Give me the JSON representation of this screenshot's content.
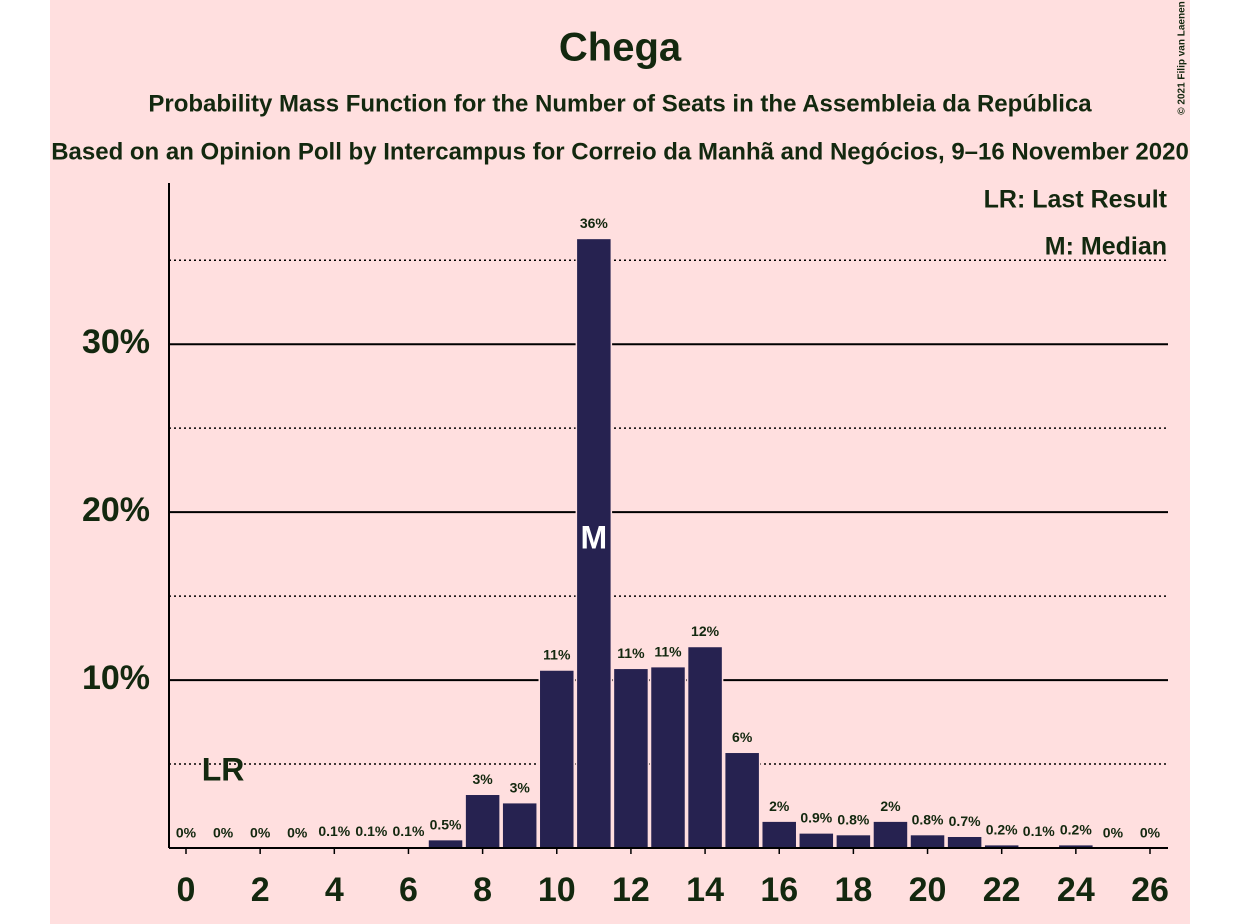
{
  "chart_data": {
    "type": "bar",
    "title": "Chega",
    "subtitle": "Probability Mass Function for the Number of Seats in the Assembleia da República",
    "subtitle2": "Based on an Opinion Poll by Intercampus for Correio da Manhã and Negócios, 9–16 November 2020",
    "copyright": "© 2021 Filip van Laenen",
    "legend": [
      "LR: Last Result",
      "M: Median"
    ],
    "legend_position": "upper right",
    "x": [
      0,
      1,
      2,
      3,
      4,
      5,
      6,
      7,
      8,
      9,
      10,
      11,
      12,
      13,
      14,
      15,
      16,
      17,
      18,
      19,
      20,
      21,
      22,
      23,
      24,
      25,
      26
    ],
    "values": [
      0,
      0,
      0,
      0,
      0.1,
      0.1,
      0.1,
      0.5,
      3.2,
      2.7,
      10.6,
      36.3,
      10.7,
      10.8,
      12.0,
      5.7,
      1.6,
      0.9,
      0.8,
      1.6,
      0.8,
      0.7,
      0.2,
      0.1,
      0.2,
      0,
      0
    ],
    "value_labels": [
      "0%",
      "0%",
      "0%",
      "0%",
      "0.1%",
      "0.1%",
      "0.1%",
      "0.5%",
      "3%",
      "3%",
      "11%",
      "36%",
      "11%",
      "11%",
      "12%",
      "6%",
      "2%",
      "0.9%",
      "0.8%",
      "2%",
      "0.8%",
      "0.7%",
      "0.2%",
      "0.1%",
      "0.2%",
      "0%",
      "0%"
    ],
    "color": "#262250",
    "xlim": [
      0,
      26
    ],
    "xticks": [
      0,
      2,
      4,
      6,
      8,
      10,
      12,
      14,
      16,
      18,
      20,
      22,
      24,
      26
    ],
    "ylim": [
      0,
      39.6
    ],
    "yticks": [
      {
        "value": 10,
        "label": "10%"
      },
      {
        "value": 20,
        "label": "20%"
      },
      {
        "value": 30,
        "label": "30%"
      }
    ],
    "minor_gridlines": [
      5,
      15,
      25,
      35
    ],
    "grid": true,
    "annotations": [
      {
        "text": "LR",
        "x": 1
      },
      {
        "text": "M",
        "x": 11
      }
    ]
  }
}
